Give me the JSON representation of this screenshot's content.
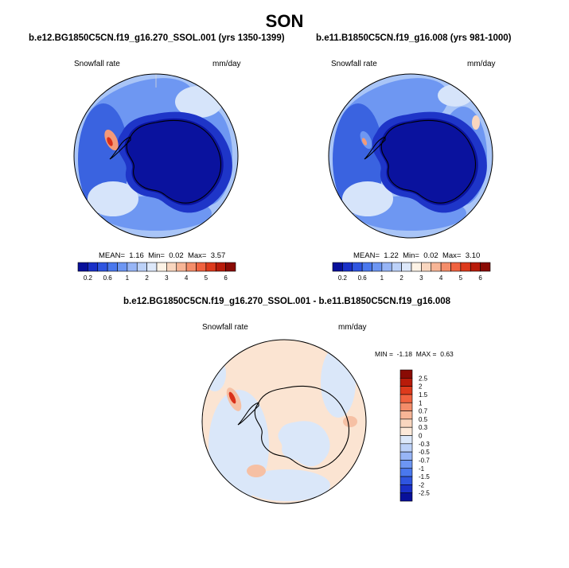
{
  "page": {
    "title": "SON"
  },
  "panels": [
    {
      "case_title": "b.e12.BG1850C5CN.f19_g16.270_SSOL.001 (yrs 1350-1399)",
      "variable": "Snowfall rate",
      "units": "mm/day",
      "stats": {
        "mean_label": "MEAN=",
        "mean": "1.16",
        "min_label": "Min=",
        "min": "0.02",
        "max_label": "Max=",
        "max": "3.57"
      }
    },
    {
      "case_title": "b.e11.B1850C5CN.f19_g16.008 (yrs 981-1000)",
      "variable": "Snowfall rate",
      "units": "mm/day",
      "stats": {
        "mean_label": "MEAN=",
        "mean": "1.22",
        "min_label": "Min=",
        "min": "0.02",
        "max_label": "Max=",
        "max": "3.10"
      }
    },
    {
      "case_title": "b.e12.BG1850C5CN.f19_g16.270_SSOL.001 - b.e11.B1850C5CN.f19_g16.008",
      "variable": "Snowfall rate",
      "units": "mm/day",
      "stats": {
        "min_label": "MIN =",
        "min": "-1.18",
        "max_label": "MAX =",
        "max": "0.63"
      }
    }
  ],
  "colorbar_abs": {
    "labels": [
      "0.2",
      "0.6",
      "1",
      "2",
      "3",
      "4",
      "5",
      "6"
    ],
    "colors": [
      "#08109a",
      "#1a30c8",
      "#2f55e0",
      "#4a78ee",
      "#6d96f3",
      "#97b5f6",
      "#bcd1f8",
      "#dde8fa",
      "#fdf3e6",
      "#f9d6bf",
      "#f7b596",
      "#f48d6a",
      "#f0623f",
      "#dd3a1c",
      "#b81b0a",
      "#8a0b04"
    ]
  },
  "colorbar_diff": {
    "labels": [
      "2.5",
      "2",
      "1.5",
      "1",
      "0.7",
      "0.5",
      "0.3",
      "0",
      "-0.3",
      "-0.5",
      "-0.7",
      "-1",
      "-1.5",
      "-2",
      "-2.5"
    ],
    "colors": [
      "#8a0b04",
      "#b81b0a",
      "#dd3a1c",
      "#f0623f",
      "#f48d6a",
      "#f7b596",
      "#f9d6bf",
      "#fde9d9",
      "#dce8fa",
      "#bcd1f8",
      "#97b5f6",
      "#6d96f3",
      "#4a78ee",
      "#2f55e0",
      "#1a30c8",
      "#08109a"
    ]
  },
  "map_colors": {
    "deep": "#0a129e",
    "dark": "#1e35c8",
    "mid": "#3a63e0",
    "light": "#6e97f2",
    "pale": "#a9c5f7",
    "palest": "#d6e4fa",
    "warm": "#f9d6bf",
    "warmer": "#f39a78",
    "red": "#d9301a",
    "diff_pos": "#fbe4d2",
    "diff_neg": "#dae7f9",
    "diff_pos2": "#f6c0a4"
  }
}
